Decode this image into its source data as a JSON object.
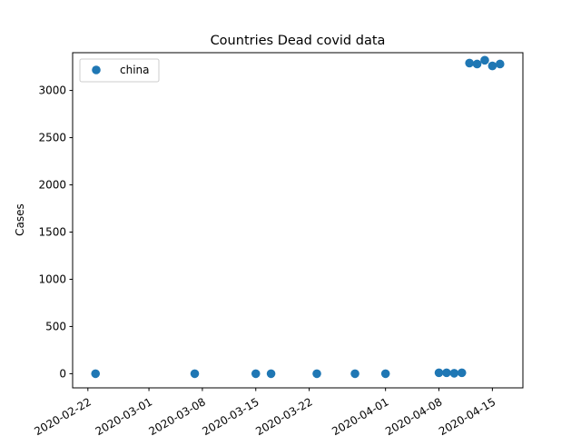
{
  "chart_data": {
    "type": "scatter",
    "title": "Countries Dead covid data",
    "xlabel": "",
    "ylabel": "Cases",
    "x_type": "date",
    "xlim": [
      "2020-02-20",
      "2020-04-19"
    ],
    "ylim": [
      -150,
      3400
    ],
    "xticks": [
      "2020-02-22",
      "2020-03-01",
      "2020-03-08",
      "2020-03-15",
      "2020-03-22",
      "2020-04-01",
      "2020-04-08",
      "2020-04-15"
    ],
    "yticks": [
      0,
      500,
      1000,
      1500,
      2000,
      2500,
      3000
    ],
    "grid": false,
    "legend": "top-left",
    "series": [
      {
        "name": "china",
        "color": "#1f77b4",
        "marker": "circle",
        "points": [
          {
            "x": "2020-02-23",
            "y": 0
          },
          {
            "x": "2020-03-07",
            "y": 0
          },
          {
            "x": "2020-03-15",
            "y": 0
          },
          {
            "x": "2020-03-17",
            "y": 0
          },
          {
            "x": "2020-03-23",
            "y": 0
          },
          {
            "x": "2020-03-28",
            "y": 0
          },
          {
            "x": "2020-04-01",
            "y": 0
          },
          {
            "x": "2020-04-08",
            "y": 10
          },
          {
            "x": "2020-04-09",
            "y": 10
          },
          {
            "x": "2020-04-10",
            "y": 5
          },
          {
            "x": "2020-04-11",
            "y": 10
          },
          {
            "x": "2020-04-12",
            "y": 3290
          },
          {
            "x": "2020-04-13",
            "y": 3280
          },
          {
            "x": "2020-04-14",
            "y": 3320
          },
          {
            "x": "2020-04-15",
            "y": 3260
          },
          {
            "x": "2020-04-16",
            "y": 3280
          }
        ]
      }
    ]
  }
}
